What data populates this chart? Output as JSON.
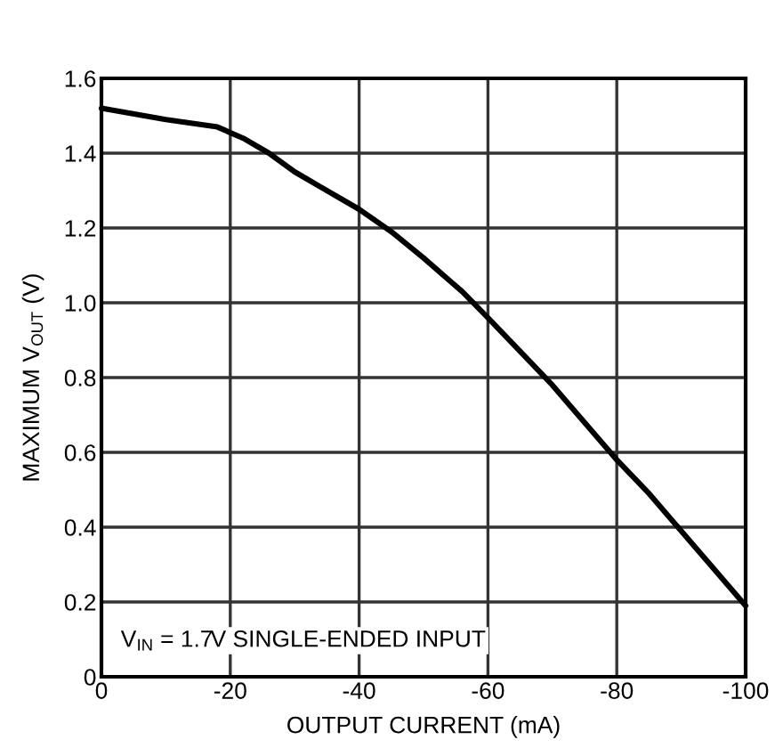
{
  "chart_data": {
    "type": "line",
    "xlabel": "OUTPUT CURRENT (mA)",
    "ylabel": "MAXIMUM V$_{OUT}$ (V)",
    "x": [
      0,
      -10,
      -18,
      -22,
      -26,
      -30,
      -34,
      -40,
      -45,
      -50,
      -56,
      -60,
      -65,
      -70,
      -75,
      -80,
      -85,
      -90,
      -95,
      -100
    ],
    "series": [
      {
        "color": "#000000",
        "values": [
          1.52,
          1.49,
          1.47,
          1.44,
          1.4,
          1.35,
          1.31,
          1.25,
          1.19,
          1.12,
          1.03,
          0.96,
          0.87,
          0.78,
          0.68,
          0.58,
          0.49,
          0.39,
          0.29,
          0.19
        ]
      }
    ],
    "xlim": [
      0,
      -100
    ],
    "xticks": [
      0,
      -20,
      -40,
      -60,
      -80,
      -100
    ],
    "ylim": [
      0,
      1.6
    ],
    "yticks": [
      {
        "value": 0,
        "label": "0"
      },
      {
        "value": 0.2,
        "label": "0.2"
      },
      {
        "value": 0.4,
        "label": "0.4"
      },
      {
        "value": 0.6,
        "label": "0.6"
      },
      {
        "value": 0.8,
        "label": "0.8"
      },
      {
        "value": 1,
        "label": "1.0"
      },
      {
        "value": 1.2,
        "label": "1.2"
      },
      {
        "value": 1.4,
        "label": "1.4"
      },
      {
        "value": 1.6,
        "label": "1.6"
      }
    ],
    "grid": true,
    "line_style": "solid",
    "marker": "none",
    "annotations": [
      {
        "text": "V$_{IN}$ = 1.7V SINGLE-ENDED INPUT"
      }
    ]
  }
}
